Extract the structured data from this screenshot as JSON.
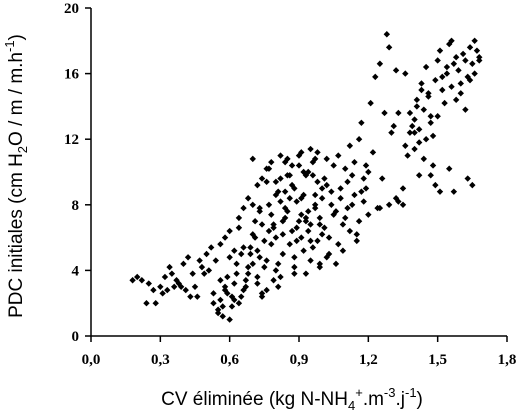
{
  "chart_data": {
    "type": "scatter",
    "title": "",
    "xlabel": "CV éliminée (kg N-NH4+.m-3.j-1)",
    "xlabel_parts": {
      "prefix": "CV éliminée (kg N-NH",
      "sub": "4",
      "sup": "+",
      "mid": ".m",
      "sup2": "-3",
      "mid2": ".j",
      "sup3": "-1",
      "suffix": ")"
    },
    "ylabel": "PDC initiales (cm H2O / m / m.h-1)",
    "ylabel_parts": {
      "prefix": "PDC initiales (cm H",
      "sub": "2",
      "mid": "O / m / m.h",
      "sup": "-1",
      "suffix": ")"
    },
    "xlim": [
      0,
      1.8
    ],
    "ylim": [
      0,
      20
    ],
    "xticks": [
      0.0,
      0.3,
      0.6,
      0.9,
      1.2,
      1.5,
      1.8
    ],
    "xtick_labels": [
      "0,0",
      "0,3",
      "0,6",
      "0,9",
      "1,2",
      "1,5",
      "1,8"
    ],
    "yticks": [
      0,
      4,
      8,
      12,
      16,
      20
    ],
    "ytick_labels": [
      "0",
      "4",
      "8",
      "12",
      "16",
      "20"
    ],
    "marker": "diamond",
    "marker_color": "#000000",
    "grid": false,
    "legend": "none",
    "series": [
      {
        "x": [
          0.2,
          0.22,
          0.25,
          0.27,
          0.3,
          0.32,
          0.34,
          0.35,
          0.37,
          0.39,
          0.4,
          0.42,
          0.44,
          0.45,
          0.46,
          0.48,
          0.5,
          0.52,
          0.18,
          0.24,
          0.28,
          0.31,
          0.36,
          0.41,
          0.43,
          0.47,
          0.49,
          0.51,
          0.33,
          0.38,
          0.53,
          0.55,
          0.56,
          0.57,
          0.58,
          0.59,
          0.6,
          0.61,
          0.62,
          0.63,
          0.64,
          0.65,
          0.54,
          0.56,
          0.58,
          0.6,
          0.62,
          0.64,
          0.55,
          0.57,
          0.59,
          0.61,
          0.63,
          0.65,
          0.53,
          0.6,
          0.58,
          0.62,
          0.56,
          0.64,
          0.66,
          0.67,
          0.68,
          0.69,
          0.7,
          0.71,
          0.72,
          0.73,
          0.74,
          0.75,
          0.66,
          0.68,
          0.7,
          0.72,
          0.74,
          0.67,
          0.69,
          0.71,
          0.73,
          0.75,
          0.66,
          0.7,
          0.74,
          0.68,
          0.72,
          0.76,
          0.77,
          0.78,
          0.79,
          0.8,
          0.76,
          0.78,
          0.8,
          0.77,
          0.79,
          0.81,
          0.82,
          0.83,
          0.84,
          0.85,
          0.81,
          0.83,
          0.85,
          0.82,
          0.84,
          0.86,
          0.87,
          0.88,
          0.89,
          0.9,
          0.86,
          0.88,
          0.9,
          0.87,
          0.89,
          0.76,
          0.8,
          0.84,
          0.88,
          0.82,
          0.91,
          0.92,
          0.93,
          0.94,
          0.95,
          0.96,
          0.97,
          0.98,
          0.99,
          1.0,
          0.91,
          0.93,
          0.95,
          0.97,
          0.99,
          0.92,
          0.94,
          0.96,
          0.98,
          1.0,
          0.91,
          0.95,
          0.99,
          0.93,
          0.97,
          1.01,
          1.02,
          1.03,
          1.04,
          1.05,
          1.01,
          1.03,
          1.05,
          1.02,
          1.04,
          1.06,
          1.07,
          1.08,
          1.09,
          1.1,
          1.06,
          1.08,
          1.1,
          1.07,
          1.09,
          1.11,
          1.12,
          1.13,
          1.14,
          1.15,
          1.11,
          1.13,
          1.15,
          1.12,
          1.14,
          1.16,
          1.17,
          1.18,
          1.19,
          1.2,
          1.16,
          1.18,
          1.2,
          1.17,
          1.19,
          1.21,
          1.22,
          1.24,
          1.25,
          1.26,
          1.23,
          1.27,
          1.28,
          1.3,
          1.32,
          1.29,
          1.31,
          1.33,
          1.35,
          1.36,
          1.38,
          1.4,
          1.41,
          1.42,
          1.43,
          1.44,
          1.45,
          1.46,
          1.47,
          1.48,
          1.39,
          1.41,
          1.43,
          1.45,
          1.47,
          1.4,
          1.42,
          1.44,
          1.46,
          1.48,
          1.37,
          1.36,
          1.38,
          1.4,
          1.42,
          1.49,
          1.5,
          1.51,
          1.52,
          1.53,
          1.54,
          1.55,
          1.56,
          1.57,
          1.58,
          1.5,
          1.52,
          1.54,
          1.56,
          1.58,
          1.59,
          1.6,
          1.61,
          1.62,
          1.63,
          1.64,
          1.65,
          1.66,
          1.67,
          1.68,
          1.6,
          1.62,
          1.64,
          1.66,
          1.68,
          1.29,
          1.32,
          1.35,
          1.47,
          1.49,
          1.55,
          1.57,
          1.63,
          1.65,
          1.25,
          1.33,
          1.51,
          0.7,
          0.74,
          0.78,
          0.82,
          0.86,
          0.9,
          0.94,
          0.98,
          1.02,
          0.72,
          0.76,
          0.8,
          0.84,
          0.88,
          0.92,
          0.96,
          1.0,
          0.73,
          0.77,
          0.81,
          0.85,
          0.89,
          0.93,
          0.97,
          0.79,
          0.83,
          0.87,
          0.91,
          0.95,
          0.99
        ],
        "y": [
          3.6,
          3.4,
          3.2,
          2.8,
          3.0,
          3.6,
          4.2,
          3.8,
          3.4,
          3.0,
          4.4,
          4.8,
          3.8,
          3.0,
          2.4,
          4.2,
          5.0,
          5.4,
          3.4,
          2.0,
          2.0,
          2.6,
          3.0,
          2.8,
          2.4,
          4.6,
          3.8,
          4.0,
          2.8,
          3.2,
          2.0,
          1.4,
          2.2,
          1.8,
          2.8,
          3.6,
          1.0,
          2.4,
          3.2,
          4.4,
          2.0,
          5.0,
          4.6,
          5.6,
          6.0,
          6.4,
          5.2,
          7.2,
          1.6,
          1.2,
          2.6,
          1.8,
          3.8,
          2.4,
          2.6,
          4.8,
          3.0,
          2.2,
          3.4,
          6.6,
          2.8,
          3.4,
          4.2,
          5.4,
          6.2,
          7.0,
          3.2,
          4.8,
          2.6,
          5.8,
          7.8,
          8.4,
          4.4,
          3.6,
          6.8,
          3.0,
          5.0,
          6.0,
          7.6,
          4.2,
          5.4,
          8.0,
          2.4,
          3.8,
          5.2,
          4.6,
          6.4,
          7.4,
          3.4,
          8.6,
          9.4,
          5.6,
          4.0,
          10.2,
          6.8,
          3.0,
          8.2,
          5.0,
          7.2,
          9.8,
          4.4,
          6.2,
          10.8,
          3.6,
          7.8,
          5.6,
          9.2,
          4.8,
          6.6,
          11.0,
          8.4,
          4.2,
          7.0,
          10.4,
          5.8,
          2.8,
          6.0,
          8.8,
          3.8,
          9.6,
          7.4,
          5.2,
          9.8,
          6.4,
          4.6,
          10.6,
          8.0,
          5.8,
          7.2,
          9.0,
          11.2,
          3.8,
          6.8,
          8.6,
          4.4,
          10.0,
          7.6,
          5.4,
          9.4,
          6.2,
          8.4,
          11.4,
          4.2,
          7.0,
          10.8,
          6.6,
          9.2,
          5.0,
          8.0,
          7.4,
          9.6,
          6.0,
          10.4,
          4.8,
          8.8,
          7.6,
          5.6,
          9.0,
          6.8,
          10.2,
          4.4,
          8.4,
          7.2,
          11.0,
          5.2,
          9.4,
          6.4,
          8.0,
          10.6,
          5.8,
          7.8,
          9.8,
          6.2,
          11.6,
          8.6,
          7.0,
          8.8,
          9.6,
          10.4,
          7.4,
          12.0,
          8.2,
          10.0,
          13.0,
          9.0,
          14.2,
          11.2,
          7.8,
          16.6,
          9.6,
          15.8,
          13.6,
          18.4,
          12.4,
          16.2,
          17.6,
          12.8,
          13.6,
          9.0,
          11.6,
          12.4,
          13.2,
          14.4,
          11.8,
          15.0,
          13.8,
          12.0,
          14.8,
          13.4,
          10.4,
          12.8,
          14.0,
          15.4,
          16.4,
          13.0,
          11.4,
          12.6,
          10.8,
          14.6,
          12.2,
          11.0,
          16.0,
          13.6,
          12.4,
          9.8,
          15.6,
          16.8,
          17.4,
          15.0,
          14.2,
          16.0,
          17.8,
          15.2,
          16.6,
          14.4,
          13.4,
          15.8,
          16.4,
          18.0,
          17.0,
          16.2,
          15.4,
          17.2,
          16.8,
          15.8,
          17.6,
          16.6,
          18.0,
          17.4,
          16.8,
          14.8,
          13.8,
          15.6,
          16.0,
          17.0,
          8.0,
          8.4,
          8.0,
          9.8,
          9.2,
          10.2,
          8.8,
          9.6,
          9.2,
          7.8,
          8.2,
          8.8,
          10.8,
          9.6,
          10.6,
          11.0,
          9.8,
          10.4,
          10.0,
          11.2,
          10.8,
          9.2,
          10.2,
          9.4,
          10.6,
          9.0,
          8.6,
          9.8,
          8.4,
          7.8,
          8.0,
          8.8,
          7.6,
          8.2,
          7.2,
          7.8,
          6.6,
          7.0,
          6.4,
          6.0,
          5.8,
          6.8
        ]
      }
    ]
  }
}
